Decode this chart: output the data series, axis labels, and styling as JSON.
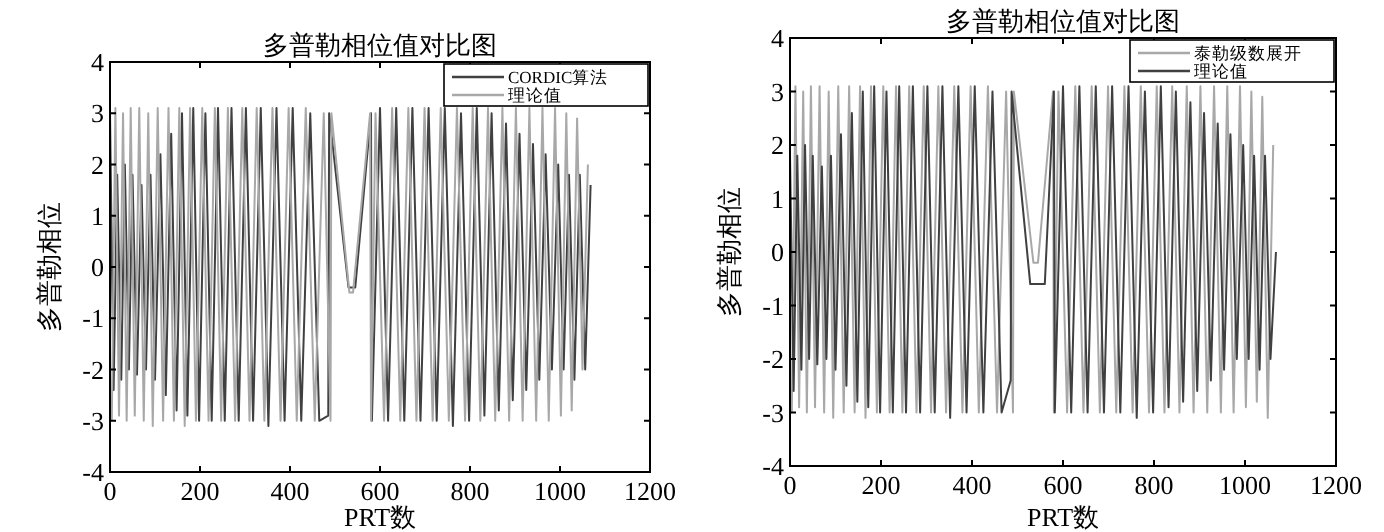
{
  "chart_data": [
    {
      "type": "line",
      "title": "多普勒相位值对比图",
      "xlabel": "PRT数",
      "ylabel": "多普勒相位",
      "xlim": [
        0,
        1200
      ],
      "ylim": [
        -4,
        4
      ],
      "xticks": [
        0,
        200,
        400,
        600,
        800,
        1000,
        1200
      ],
      "yticks": [
        -4,
        -3,
        -2,
        -1,
        0,
        1,
        2,
        3,
        4
      ],
      "grid": false,
      "legend": "top right",
      "marker": "none",
      "line_style": "solid",
      "series": [
        {
          "name": "CORDIC算法",
          "color": "#404040",
          "x": [
            0,
            8,
            16,
            25,
            33,
            42,
            50,
            60,
            70,
            80,
            90,
            100,
            112,
            124,
            136,
            148,
            160,
            172,
            185,
            198,
            212,
            226,
            240,
            255,
            270,
            286,
            302,
            318,
            335,
            352,
            370,
            388,
            406,
            425,
            445,
            465,
            485,
            487,
            530,
            545,
            580,
            582,
            600,
            618,
            636,
            654,
            672,
            690,
            708,
            726,
            744,
            762,
            780,
            798,
            815,
            832,
            848,
            864,
            880,
            895,
            910,
            925,
            940,
            954,
            968,
            982,
            996,
            1008,
            1020,
            1032,
            1044,
            1056,
            1068
          ],
          "values": [
            3.0,
            -2.4,
            1.8,
            -2.2,
            2.0,
            -2.0,
            1.8,
            -2.1,
            1.6,
            -2.0,
            1.8,
            -2.2,
            2.2,
            -2.5,
            2.6,
            -2.8,
            3.0,
            -2.9,
            3.1,
            -3.0,
            3.0,
            -3.0,
            3.1,
            -3.0,
            3.1,
            -3.0,
            3.1,
            -3.0,
            3.1,
            -3.1,
            3.1,
            -3.0,
            3.1,
            -3.0,
            3.0,
            -3.0,
            -2.9,
            3.0,
            -0.4,
            -0.4,
            3.0,
            -3.0,
            3.1,
            -3.0,
            3.1,
            -3.0,
            3.1,
            -3.0,
            3.1,
            -3.0,
            3.1,
            -3.1,
            3.0,
            -3.0,
            3.1,
            -2.9,
            3.0,
            -2.8,
            2.8,
            -2.6,
            2.6,
            -2.4,
            2.4,
            -2.2,
            2.2,
            -2.0,
            2.0,
            -2.0,
            1.8,
            -2.2,
            1.8,
            -2.0,
            1.6
          ]
        },
        {
          "name": "理论值",
          "color": "#a8a8a8",
          "x": [
            4,
            12,
            20,
            29,
            37,
            46,
            55,
            65,
            75,
            85,
            95,
            106,
            118,
            130,
            142,
            154,
            166,
            178,
            191,
            205,
            219,
            233,
            247,
            262,
            278,
            294,
            310,
            326,
            343,
            361,
            379,
            397,
            415,
            435,
            455,
            475,
            490,
            492,
            532,
            540,
            578,
            580,
            590,
            609,
            627,
            645,
            663,
            681,
            699,
            717,
            735,
            753,
            771,
            789,
            806,
            823,
            840,
            856,
            872,
            887,
            902,
            917,
            932,
            947,
            961,
            975,
            989,
            1002,
            1014,
            1026,
            1038,
            1050,
            1062
          ],
          "values": [
            -3.0,
            3.1,
            -2.9,
            3.0,
            -3.0,
            3.1,
            -2.9,
            3.1,
            -3.0,
            3.0,
            -3.1,
            3.1,
            -3.0,
            3.1,
            -3.0,
            3.1,
            -3.1,
            3.1,
            -3.0,
            3.1,
            -3.0,
            3.1,
            -3.0,
            3.1,
            -3.0,
            3.1,
            -3.0,
            3.1,
            -3.0,
            3.1,
            -3.0,
            3.1,
            -3.0,
            3.1,
            -3.0,
            3.0,
            -3.0,
            3.0,
            -0.5,
            -0.5,
            3.0,
            -3.0,
            3.0,
            -3.0,
            3.1,
            -3.0,
            3.1,
            -3.0,
            3.1,
            -3.0,
            3.1,
            -3.0,
            3.1,
            -3.0,
            3.1,
            -3.0,
            3.1,
            -3.0,
            3.1,
            -3.0,
            3.1,
            -3.0,
            3.1,
            -3.0,
            3.1,
            -3.0,
            3.1,
            -2.9,
            3.0,
            -2.8,
            2.9,
            -2.0,
            2.0
          ]
        }
      ]
    },
    {
      "type": "line",
      "title": "多普勒相位值对比图",
      "xlabel": "PRT数",
      "ylabel": "多普勒相位",
      "xlim": [
        0,
        1200
      ],
      "ylim": [
        -4,
        4
      ],
      "xticks": [
        0,
        200,
        400,
        600,
        800,
        1000,
        1200
      ],
      "yticks": [
        -4,
        -3,
        -2,
        -1,
        0,
        1,
        2,
        3,
        4
      ],
      "grid": false,
      "legend": "top right",
      "marker": "none",
      "line_style": "solid",
      "series": [
        {
          "name": "泰勒级数展开",
          "color": "#a8a8a8",
          "x": [
            4,
            12,
            20,
            29,
            37,
            46,
            55,
            65,
            75,
            85,
            95,
            106,
            118,
            130,
            142,
            154,
            166,
            178,
            191,
            205,
            219,
            233,
            247,
            262,
            278,
            294,
            310,
            326,
            343,
            361,
            379,
            397,
            415,
            435,
            455,
            475,
            490,
            492,
            535,
            545,
            578,
            580,
            590,
            609,
            627,
            645,
            663,
            681,
            699,
            717,
            735,
            753,
            771,
            789,
            806,
            823,
            840,
            856,
            872,
            887,
            902,
            917,
            932,
            947,
            961,
            975,
            989,
            1002,
            1014,
            1026,
            1038,
            1050,
            1062
          ],
          "values": [
            -3.0,
            3.1,
            -2.9,
            3.0,
            -3.0,
            3.1,
            -2.9,
            3.1,
            -3.0,
            3.0,
            -3.1,
            3.1,
            -3.0,
            3.1,
            -3.0,
            3.1,
            -3.1,
            3.1,
            -3.0,
            3.1,
            -3.0,
            3.1,
            -3.0,
            3.1,
            -3.0,
            3.1,
            -3.0,
            3.1,
            -3.0,
            3.1,
            -3.0,
            3.1,
            -3.0,
            3.1,
            -3.0,
            3.0,
            -3.0,
            3.0,
            -0.2,
            -0.2,
            3.0,
            -3.0,
            3.0,
            -3.0,
            3.1,
            -3.0,
            3.1,
            -3.0,
            3.1,
            -3.0,
            3.1,
            -3.0,
            3.1,
            -3.0,
            3.1,
            -3.0,
            3.1,
            -3.0,
            3.1,
            -3.0,
            3.1,
            -3.0,
            3.1,
            -3.0,
            3.1,
            -3.0,
            3.1,
            -2.9,
            3.0,
            -2.8,
            2.9,
            -3.1,
            2.0
          ]
        },
        {
          "name": "理论值",
          "color": "#404040",
          "x": [
            0,
            8,
            16,
            25,
            33,
            42,
            50,
            60,
            70,
            80,
            90,
            100,
            112,
            124,
            136,
            148,
            160,
            172,
            185,
            198,
            212,
            226,
            240,
            255,
            270,
            286,
            302,
            318,
            335,
            352,
            370,
            388,
            406,
            425,
            445,
            465,
            485,
            487,
            528,
            560,
            580,
            582,
            600,
            618,
            636,
            654,
            672,
            690,
            708,
            726,
            744,
            762,
            780,
            798,
            815,
            832,
            848,
            864,
            880,
            895,
            910,
            925,
            940,
            954,
            968,
            982,
            996,
            1008,
            1020,
            1032,
            1044,
            1056,
            1068
          ],
          "values": [
            1.8,
            -2.6,
            1.8,
            -2.2,
            2.0,
            -2.0,
            1.8,
            -2.1,
            1.6,
            -2.0,
            1.8,
            -2.2,
            2.2,
            -2.5,
            2.6,
            -2.8,
            3.0,
            -2.9,
            3.1,
            -3.0,
            3.0,
            -3.0,
            3.1,
            -3.0,
            3.1,
            -3.0,
            3.1,
            -3.0,
            3.1,
            -3.1,
            3.1,
            -3.0,
            3.1,
            -3.0,
            3.0,
            -3.0,
            -2.4,
            3.0,
            -0.6,
            -0.6,
            3.0,
            -3.0,
            3.1,
            -3.0,
            3.1,
            -3.0,
            3.1,
            -3.0,
            3.1,
            -3.0,
            3.1,
            -3.1,
            3.0,
            -3.0,
            3.1,
            -2.9,
            3.0,
            -2.8,
            2.8,
            -2.6,
            2.6,
            -2.4,
            2.4,
            -2.2,
            2.2,
            -2.0,
            2.0,
            -2.0,
            1.8,
            -2.2,
            1.8,
            -2.0,
            0.0
          ]
        }
      ]
    }
  ]
}
